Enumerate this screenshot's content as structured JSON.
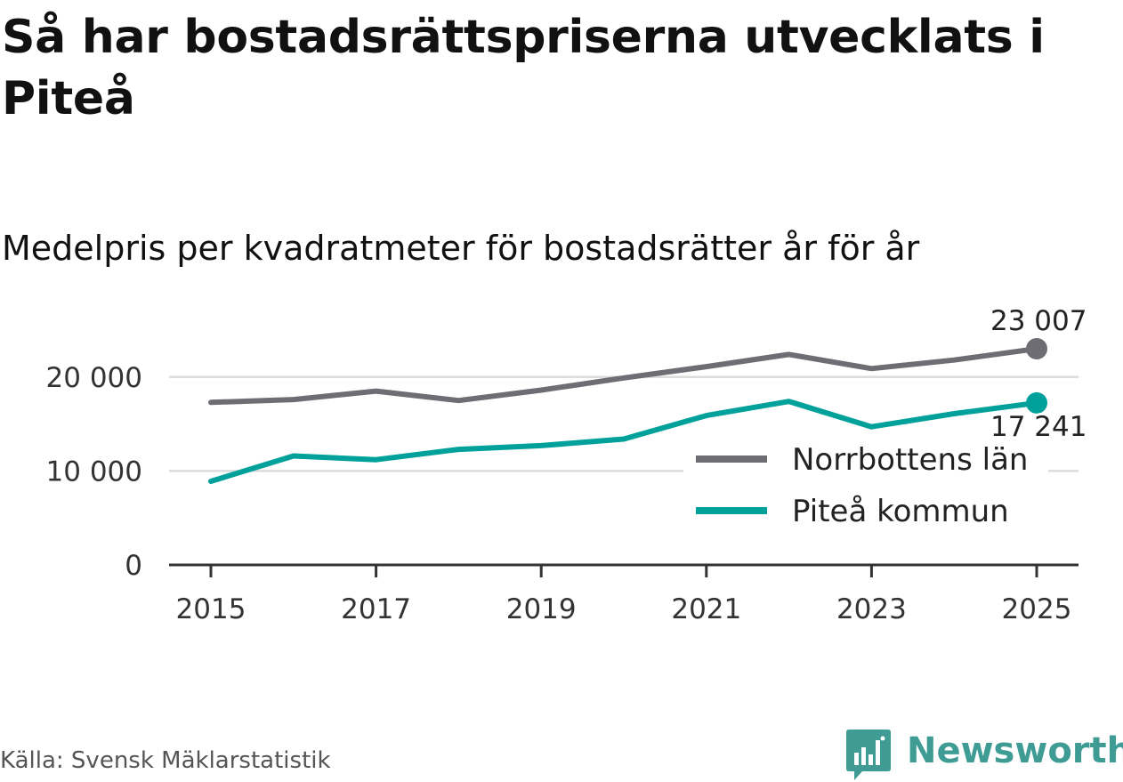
{
  "title": "Så har bostadsrättspriserna utvecklats i Piteå",
  "subtitle": "Medelpris per kvadratmeter för bostadsrätter år för år",
  "source": "Källa: Svensk Mäklarstatistik",
  "brand": {
    "name": "Newsworthy",
    "color": "#3f9c94",
    "icon": "bar-chart-speech-bubble-icon"
  },
  "chart_data": {
    "type": "line",
    "x": [
      2015,
      2016,
      2017,
      2018,
      2019,
      2020,
      2021,
      2022,
      2023,
      2024,
      2025
    ],
    "series": [
      {
        "name": "Norrbottens län",
        "color": "#6e6d73",
        "values": [
          17300,
          17600,
          18500,
          17500,
          18600,
          19900,
          21100,
          22400,
          20900,
          21800,
          23007
        ],
        "end_label": "23 007"
      },
      {
        "name": "Piteå kommun",
        "color": "#00a19a",
        "values": [
          8900,
          11600,
          11200,
          12300,
          12700,
          13400,
          15900,
          17400,
          14700,
          16100,
          17241
        ],
        "end_label": "17 241"
      }
    ],
    "x_ticks": [
      2015,
      2017,
      2019,
      2021,
      2023,
      2025
    ],
    "x_tick_labels": [
      "2015",
      "2017",
      "2019",
      "2021",
      "2023",
      "2025"
    ],
    "y_ticks": [
      0,
      10000,
      20000
    ],
    "y_tick_labels": [
      "0",
      "10 000",
      "20 000"
    ],
    "ylim": [
      0,
      23007
    ],
    "xlim": [
      2015,
      2025
    ],
    "grid": true,
    "legend_position": "bottom-right",
    "xlabel": "",
    "ylabel": ""
  }
}
